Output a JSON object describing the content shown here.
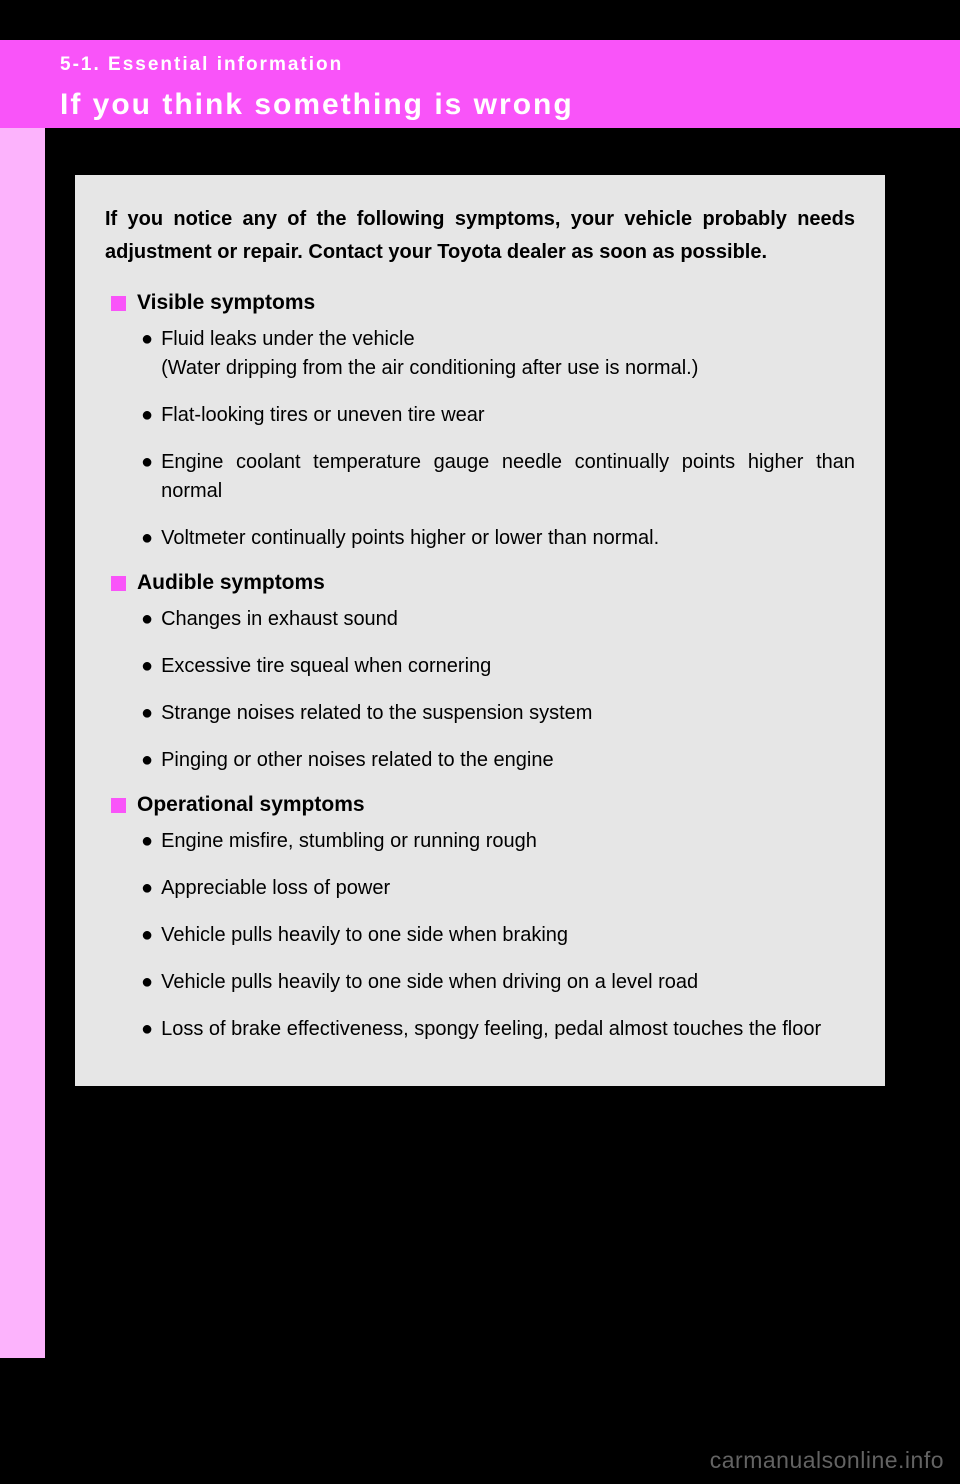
{
  "colors": {
    "header_bg": "#f954f9",
    "side_tab_bg": "#fcb3fc",
    "page_bg": "#000000",
    "content_bg": "#e6e6e6",
    "bullet_marker": "#f954f9",
    "text": "#000000",
    "header_text": "#ffffff",
    "watermark": "#636363"
  },
  "header": {
    "section_number": "5-1. Essential information",
    "title": "If you think something is wrong"
  },
  "intro": "If you notice any of the following symptoms, your vehicle probably needs adjustment or repair. Contact your Toyota dealer as soon as possible.",
  "sections": {
    "visible": {
      "title": "Visible symptoms",
      "items": [
        "Fluid leaks under the vehicle\n(Water dripping from the air conditioning after use is normal.)",
        "Flat-looking tires or uneven tire wear",
        "Engine coolant temperature gauge needle continually points higher than normal",
        "Voltmeter continually points higher or lower than normal."
      ]
    },
    "audible": {
      "title": "Audible symptoms",
      "items": [
        "Changes in exhaust sound",
        "Excessive tire squeal when cornering",
        "Strange noises related to the suspension system",
        "Pinging or other noises related to the engine"
      ]
    },
    "operational": {
      "title": "Operational symptoms",
      "items": [
        "Engine misfire, stumbling or running rough",
        "Appreciable loss of power",
        "Vehicle pulls heavily to one side when braking",
        "Vehicle pulls heavily to one side when driving on a level road",
        "Loss of brake effectiveness, spongy feeling, pedal almost touches the floor"
      ]
    }
  },
  "watermark": "carmanualsonline.info"
}
